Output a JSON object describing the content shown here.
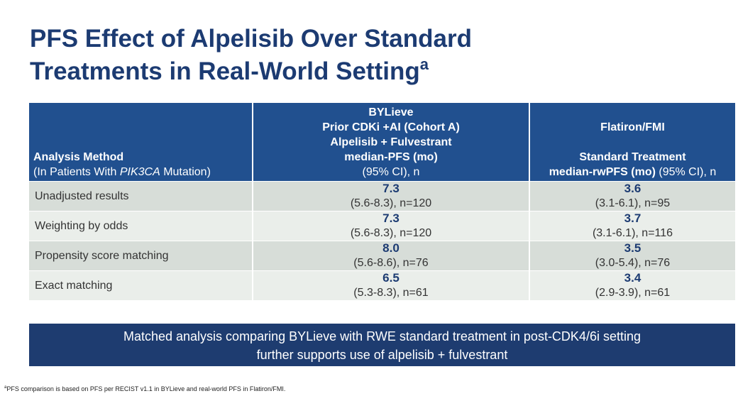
{
  "header": {
    "title_lines": [
      "PFS Effect of Alpelisib Over Standard",
      "Treatments in Real-World Setting"
    ],
    "title_superscript": "a"
  },
  "table": {
    "columns": [
      {
        "lines": [
          "Analysis Method"
        ],
        "sub_parts": [
          "(In Patients With ",
          "PIK3CA",
          " Mutation)"
        ]
      },
      {
        "lines": [
          "BYLieve",
          "Prior CDKi +AI (Cohort A)",
          "Alpelisib + Fulvestrant",
          "median-PFS (mo)"
        ],
        "sub": "(95% CI), n"
      },
      {
        "lines": [
          "Flatiron/FMI",
          "Standard Treatment"
        ],
        "last_bold": "median-rwPFS (mo)",
        "last_normal": " (95% CI), n"
      }
    ],
    "rows": [
      [
        "Unadjusted results",
        {
          "value": "7.3",
          "ci": "(5.6-8.3), n=120"
        },
        {
          "value": "3.6",
          "ci": "(3.1-6.1), n=95"
        }
      ],
      [
        "Weighting by odds",
        {
          "value": "7.3",
          "ci": "(5.6-8.3), n=120"
        },
        {
          "value": "3.7",
          "ci": "(3.1-6.1), n=116"
        }
      ],
      [
        "Propensity score matching",
        {
          "value": "8.0",
          "ci": "(5.6-8.6), n=76"
        },
        {
          "value": "3.5",
          "ci": "(3.0-5.4), n=76"
        }
      ],
      [
        "Exact matching",
        {
          "value": "6.5",
          "ci": "(5.3-8.3), n=61"
        },
        {
          "value": "3.4",
          "ci": "(2.9-3.9), n=61"
        }
      ]
    ]
  },
  "banner": {
    "lines": [
      "Matched analysis comparing BYLieve with RWE standard treatment in post-CDK4/6i setting",
      "further supports use of alpelisib + fulvestrant"
    ]
  },
  "footnote": {
    "marker": "a",
    "text": "PFS comparison is based on PFS per RECIST v1.1 in BYLieve and real-world PFS in Flatiron/FMI."
  }
}
